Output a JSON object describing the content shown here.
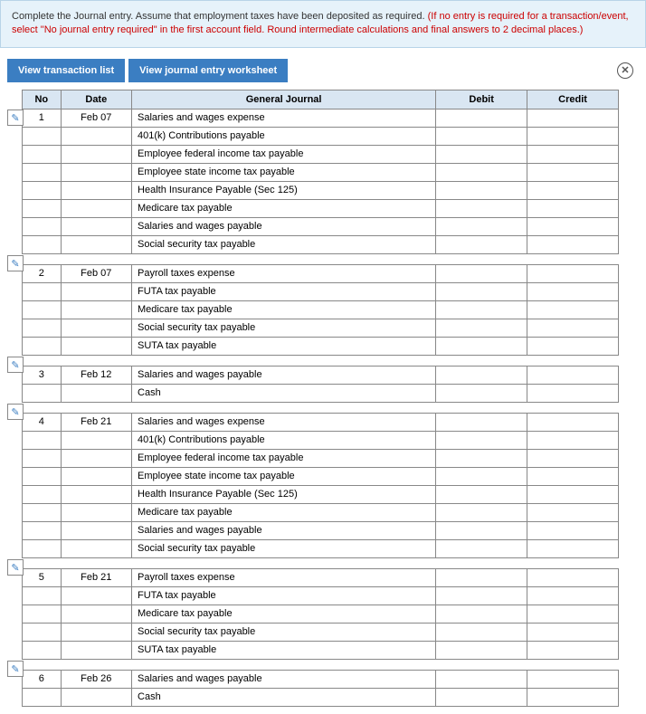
{
  "instruction": {
    "black1": "Complete the Journal entry. Assume that employment taxes have been deposited as required. ",
    "red1": "(If no entry is required for a transaction/event, select \"No journal entry required\" in the first account field. Round intermediate calculations and final answers to 2 decimal places.)"
  },
  "buttons": {
    "view_txn": "View transaction list",
    "view_worksheet": "View journal entry worksheet"
  },
  "headers": {
    "no": "No",
    "date": "Date",
    "gj": "General Journal",
    "debit": "Debit",
    "credit": "Credit"
  },
  "groups": [
    {
      "no": "1",
      "date": "Feb 07",
      "accounts": [
        "Salaries and wages expense",
        "401(k) Contributions payable",
        "Employee federal income tax payable",
        "Employee state income tax payable",
        "Health Insurance Payable (Sec 125)",
        "Medicare tax payable",
        "Salaries and wages payable",
        "Social security tax payable"
      ]
    },
    {
      "no": "2",
      "date": "Feb 07",
      "accounts": [
        "Payroll taxes expense",
        "FUTA tax payable",
        "Medicare tax payable",
        "Social security tax payable",
        "SUTA tax payable"
      ]
    },
    {
      "no": "3",
      "date": "Feb 12",
      "accounts": [
        "Salaries and wages payable",
        "Cash"
      ]
    },
    {
      "no": "4",
      "date": "Feb 21",
      "accounts": [
        "Salaries and wages expense",
        "401(k) Contributions payable",
        "Employee federal income tax payable",
        "Employee state income tax payable",
        "Health Insurance Payable (Sec 125)",
        "Medicare tax payable",
        "Salaries and wages payable",
        "Social security tax payable"
      ]
    },
    {
      "no": "5",
      "date": "Feb 21",
      "accounts": [
        "Payroll taxes expense",
        "FUTA tax payable",
        "Medicare tax payable",
        "Social security tax payable",
        "SUTA tax payable"
      ]
    },
    {
      "no": "6",
      "date": "Feb 26",
      "accounts": [
        "Salaries and wages payable",
        "Cash"
      ]
    }
  ]
}
